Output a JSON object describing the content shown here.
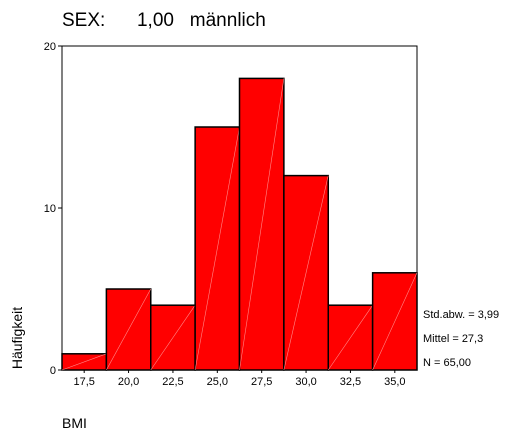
{
  "chart_data": {
    "type": "bar",
    "title": "SEX:      1,00   männlich",
    "xlabel": "BMI",
    "ylabel": "Häufigkeit",
    "categories": [
      "17,5",
      "20,0",
      "22,5",
      "25,0",
      "27,5",
      "30,0",
      "32,5",
      "35,0"
    ],
    "values": [
      1,
      5,
      4,
      15,
      18,
      12,
      4,
      6
    ],
    "ylim": [
      0,
      20
    ],
    "yticks": [
      "0",
      "10",
      "20"
    ],
    "stats": [
      "Std.abw. = 3,99",
      "Mittel = 27,3",
      "N = 65,00"
    ],
    "bar_color": "#ff0000",
    "edge_color": "#000000",
    "grid": false
  }
}
